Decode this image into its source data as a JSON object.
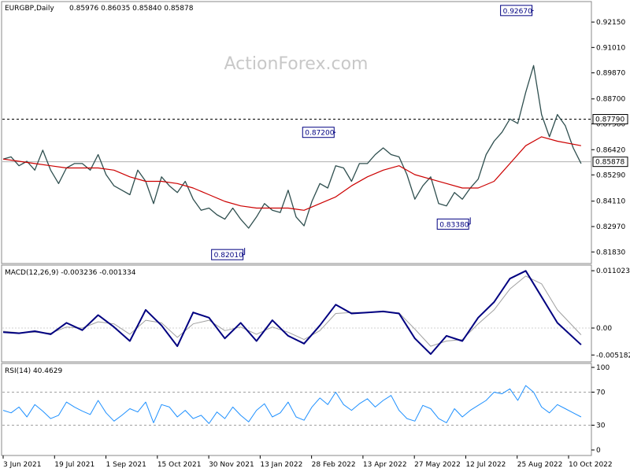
{
  "chart_data": {
    "type": "line",
    "header": {
      "symbol": "EURGBP,Daily",
      "ohlc": "0.85976 0.86035 0.85840 0.85878"
    },
    "watermark": "ActionForex.com",
    "x_ticks": [
      "3 Jun 2021",
      "19 Jul 2021",
      "1 Sep 2021",
      "15 Oct 2021",
      "30 Nov 2021",
      "13 Jan 2022",
      "28 Feb 2022",
      "13 Apr 2022",
      "27 May 2022",
      "12 Jul 2022",
      "25 Aug 2022",
      "10 Oct 2022"
    ],
    "price_axis": {
      "ylim": [
        0.8138,
        0.93
      ],
      "ticks": [
        "0.92150",
        "0.91010",
        "0.89870",
        "0.88700",
        "0.87580",
        "0.86420",
        "0.85290",
        "0.84110",
        "0.82970",
        "0.81830"
      ],
      "reference_line": 0.8779,
      "reference_label": "0.87790",
      "current_line": 0.85878,
      "current_label": "0.85878"
    },
    "annotations": [
      {
        "label": "0.92670",
        "value": 0.9267,
        "x": 134
      },
      {
        "label": "0.87200",
        "value": 0.872,
        "x": 84
      },
      {
        "label": "0.83380",
        "value": 0.8338,
        "x": 118
      },
      {
        "label": "0.82010",
        "value": 0.8201,
        "x": 61
      }
    ],
    "price_series": {
      "name": "EURGBP",
      "color": "#2f4f4f",
      "x": [
        0,
        2,
        4,
        6,
        8,
        10,
        12,
        14,
        16,
        18,
        20,
        22,
        24,
        26,
        28,
        30,
        32,
        34,
        36,
        38,
        40,
        42,
        44,
        46,
        48,
        50,
        52,
        54,
        56,
        58,
        60,
        62,
        64,
        66,
        68,
        70,
        72,
        74,
        76,
        78,
        80,
        82,
        84,
        86,
        88,
        90,
        92,
        94,
        96,
        98,
        100,
        102,
        104,
        106,
        108,
        110,
        112,
        114,
        116,
        118,
        120,
        122,
        124,
        126,
        128,
        130,
        132,
        134,
        136,
        138,
        140,
        142,
        144,
        146
      ],
      "values": [
        0.86,
        0.861,
        0.857,
        0.859,
        0.855,
        0.864,
        0.855,
        0.849,
        0.856,
        0.858,
        0.858,
        0.855,
        0.862,
        0.853,
        0.848,
        0.846,
        0.844,
        0.855,
        0.85,
        0.84,
        0.852,
        0.848,
        0.845,
        0.85,
        0.842,
        0.837,
        0.838,
        0.835,
        0.833,
        0.838,
        0.833,
        0.829,
        0.834,
        0.84,
        0.837,
        0.836,
        0.846,
        0.834,
        0.83,
        0.841,
        0.849,
        0.847,
        0.857,
        0.856,
        0.85,
        0.858,
        0.858,
        0.862,
        0.865,
        0.862,
        0.861,
        0.853,
        0.842,
        0.848,
        0.852,
        0.84,
        0.839,
        0.845,
        0.842,
        0.847,
        0.851,
        0.862,
        0.868,
        0.872,
        0.878,
        0.876,
        0.89,
        0.902,
        0.88,
        0.87,
        0.88,
        0.875,
        0.865,
        0.858
      ]
    },
    "ma_series": {
      "name": "MA",
      "color": "#cc0000",
      "x": [
        0,
        4,
        8,
        12,
        16,
        20,
        24,
        28,
        32,
        36,
        40,
        44,
        48,
        52,
        56,
        60,
        64,
        68,
        72,
        76,
        80,
        84,
        88,
        92,
        96,
        100,
        104,
        108,
        112,
        116,
        120,
        124,
        128,
        132,
        136,
        140,
        146
      ],
      "values": [
        0.86,
        0.859,
        0.858,
        0.857,
        0.856,
        0.856,
        0.856,
        0.855,
        0.852,
        0.85,
        0.85,
        0.849,
        0.847,
        0.844,
        0.841,
        0.839,
        0.838,
        0.838,
        0.838,
        0.837,
        0.84,
        0.843,
        0.848,
        0.852,
        0.855,
        0.857,
        0.853,
        0.851,
        0.849,
        0.847,
        0.847,
        0.85,
        0.858,
        0.866,
        0.87,
        0.868,
        0.866
      ]
    },
    "macd_panel": {
      "label": "MACD(12,26,9) -0.003236 -0.001334",
      "ylim": [
        -0.0062,
        0.0118
      ],
      "ticks": [
        "0.011023",
        "0.00",
        "-0.005182"
      ],
      "macd": {
        "color": "#000080",
        "x": [
          0,
          4,
          8,
          12,
          16,
          20,
          24,
          28,
          32,
          36,
          40,
          44,
          48,
          52,
          56,
          60,
          64,
          68,
          72,
          76,
          80,
          84,
          88,
          92,
          96,
          100,
          104,
          108,
          112,
          116,
          120,
          124,
          128,
          132,
          136,
          140,
          146
        ],
        "values": [
          -0.0008,
          -0.001,
          -0.0006,
          -0.0012,
          0.001,
          -0.0004,
          0.0025,
          0.0002,
          -0.0025,
          0.0035,
          0.0005,
          -0.0035,
          0.003,
          0.002,
          -0.002,
          0.001,
          -0.0025,
          0.0015,
          -0.0015,
          -0.003,
          0.0005,
          0.0045,
          0.0028,
          0.003,
          0.0032,
          0.0028,
          -0.002,
          -0.005,
          -0.0015,
          -0.0025,
          0.002,
          0.005,
          0.0095,
          0.011,
          0.006,
          0.001,
          -0.0032
        ]
      },
      "signal": {
        "color": "#a0a0a0",
        "x": [
          0,
          4,
          8,
          12,
          16,
          20,
          24,
          28,
          32,
          36,
          40,
          44,
          48,
          52,
          56,
          60,
          64,
          68,
          72,
          76,
          80,
          84,
          88,
          92,
          96,
          100,
          104,
          108,
          112,
          116,
          120,
          124,
          128,
          132,
          136,
          140,
          146
        ],
        "values": [
          -0.0006,
          -0.0009,
          -0.0008,
          -0.001,
          0.0002,
          0.0,
          0.0012,
          0.0008,
          -0.0012,
          0.0015,
          0.001,
          -0.0018,
          0.0008,
          0.0015,
          -0.0005,
          0.0002,
          -0.0012,
          0.0002,
          -0.0008,
          -0.0022,
          -0.0005,
          0.0028,
          0.003,
          0.003,
          0.0031,
          0.0029,
          -0.0002,
          -0.0035,
          -0.0025,
          -0.0022,
          0.0008,
          0.0035,
          0.0075,
          0.01,
          0.0085,
          0.0035,
          -0.0013
        ]
      }
    },
    "rsi_panel": {
      "label": "RSI(14) 40.4629",
      "ylim": [
        0,
        100
      ],
      "ticks": [
        "100",
        "70",
        "30",
        "0"
      ],
      "levels": [
        70,
        30
      ],
      "rsi": {
        "color": "#1e90ff",
        "x": [
          0,
          2,
          4,
          6,
          8,
          10,
          12,
          14,
          16,
          18,
          20,
          22,
          24,
          26,
          28,
          30,
          32,
          34,
          36,
          38,
          40,
          42,
          44,
          46,
          48,
          50,
          52,
          54,
          56,
          58,
          60,
          62,
          64,
          66,
          68,
          70,
          72,
          74,
          76,
          78,
          80,
          82,
          84,
          86,
          88,
          90,
          92,
          94,
          96,
          98,
          100,
          102,
          104,
          106,
          108,
          110,
          112,
          114,
          116,
          118,
          120,
          122,
          124,
          126,
          128,
          130,
          132,
          134,
          136,
          138,
          140,
          142,
          144,
          146
        ],
        "values": [
          48,
          45,
          52,
          40,
          55,
          47,
          38,
          42,
          58,
          52,
          47,
          43,
          60,
          45,
          35,
          42,
          50,
          46,
          58,
          33,
          55,
          52,
          40,
          48,
          38,
          42,
          32,
          46,
          38,
          52,
          42,
          34,
          48,
          56,
          40,
          45,
          58,
          40,
          36,
          52,
          63,
          55,
          70,
          55,
          48,
          56,
          62,
          52,
          60,
          66,
          48,
          38,
          35,
          54,
          50,
          38,
          33,
          50,
          40,
          48,
          54,
          60,
          70,
          68,
          74,
          60,
          78,
          70,
          52,
          45,
          55,
          50,
          45,
          40
        ]
      }
    },
    "time_range": [
      0,
      148
    ]
  }
}
